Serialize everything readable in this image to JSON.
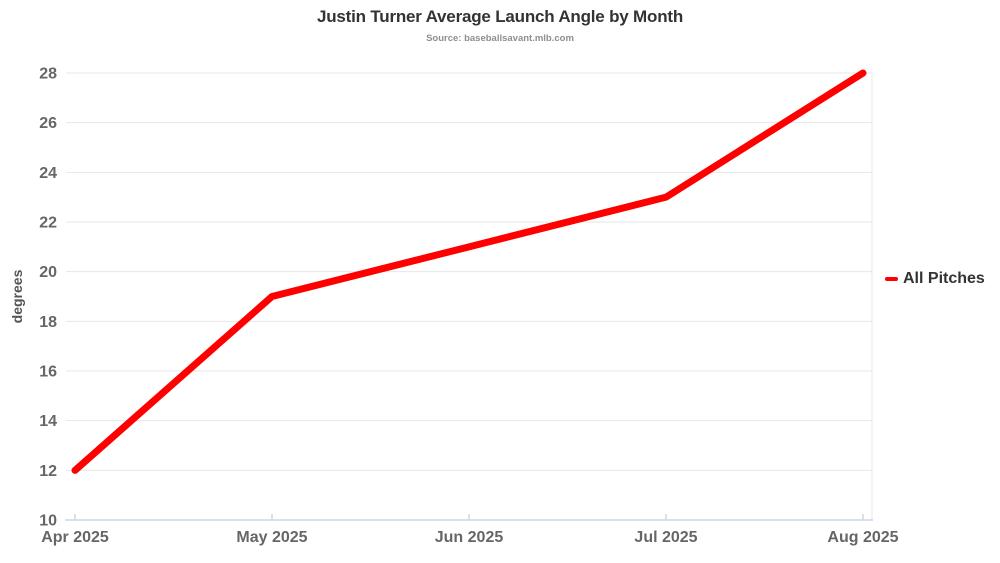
{
  "chart_data": {
    "type": "line",
    "title": "Justin Turner Average Launch Angle by Month",
    "source": "Source: baseballsavant.mlb.com",
    "categories": [
      "Apr 2025",
      "May 2025",
      "Jun 2025",
      "Jul 2025",
      "Aug 2025"
    ],
    "series": [
      {
        "name": "All Pitches",
        "color": "#ff0000",
        "values": [
          12,
          19,
          21,
          23,
          28
        ]
      }
    ],
    "xlabel": "",
    "ylabel": "degrees",
    "ylim": [
      10,
      28
    ],
    "ytick_step": 2,
    "grid": "horizontal",
    "legend_position": "right"
  },
  "colors": {
    "line": "#ff0000",
    "grid": "#e7e7e7",
    "axis": "#ccd6eb",
    "tick_label": "#666666",
    "axis_title": "#555555",
    "title": "#333333",
    "source": "#8e8e8e",
    "legend_text": "#333333",
    "background": "#ffffff"
  }
}
